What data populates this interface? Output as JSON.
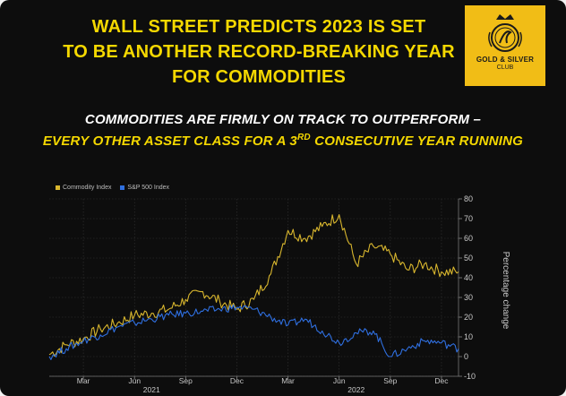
{
  "headline": {
    "line1": "WALL STREET PREDICTS 2023 IS SET",
    "line2": "TO BE ANOTHER RECORD-BREAKING YEAR",
    "line3": "FOR COMMODITIES"
  },
  "logo": {
    "line1": "GOLD & SILVER",
    "line2": "CLUB"
  },
  "subtitle": {
    "line1": "COMMODITIES ARE FIRMLY ON TRACK TO OUTPERFORM –",
    "line2_before": "EVERY OTHER ASSET CLASS FOR A 3",
    "line2_sup": "RD",
    "line2_after": " CONSECUTIVE YEAR RUNNING"
  },
  "colors": {
    "accent": "#f5d800",
    "commodity": "#d8b62e",
    "sp500": "#2f6fe0",
    "background": "#0d0d0d"
  },
  "chart_data": {
    "type": "line",
    "xlabel": "",
    "ylabel": "Percentage change",
    "ylim": [
      -10,
      80
    ],
    "y_ticks": [
      -10,
      0,
      10,
      20,
      30,
      40,
      50,
      60,
      70,
      80
    ],
    "grid": true,
    "legend_placement": "top-left",
    "x_tick_labels": [
      "Mar",
      "Jun",
      "Sep",
      "Dec",
      "Mar",
      "Jun",
      "Sep",
      "Dec"
    ],
    "x_ticks": [
      "2021-03",
      "2021-06",
      "2021-09",
      "2021-12",
      "2022-03",
      "2022-06",
      "2022-09",
      "2022-12"
    ],
    "year_labels": [
      {
        "label": "2021",
        "at": "2021-07"
      },
      {
        "label": "2022",
        "at": "2022-07"
      }
    ],
    "x": [
      "2021-01",
      "2021-02",
      "2021-03",
      "2021-04",
      "2021-05",
      "2021-06",
      "2021-07",
      "2021-08",
      "2021-09",
      "2021-10",
      "2021-11",
      "2021-12",
      "2022-01",
      "2022-02",
      "2022-03",
      "2022-04",
      "2022-05",
      "2022-06",
      "2022-07",
      "2022-08",
      "2022-09",
      "2022-10",
      "2022-11",
      "2022-12",
      "2023-01"
    ],
    "series": [
      {
        "name": "Commodity Index",
        "values": [
          1,
          6,
          9,
          14,
          17,
          21,
          22,
          24,
          29,
          33,
          28,
          24,
          29,
          42,
          64,
          60,
          66,
          72,
          47,
          56,
          52,
          44,
          47,
          43,
          43
        ]
      },
      {
        "name": "S&P 500 Index",
        "values": [
          0,
          4,
          8,
          11,
          15,
          17,
          19,
          21,
          22,
          23,
          24,
          25,
          24,
          20,
          16,
          19,
          13,
          7,
          12,
          13,
          0,
          4,
          8,
          7,
          4
        ]
      }
    ]
  }
}
